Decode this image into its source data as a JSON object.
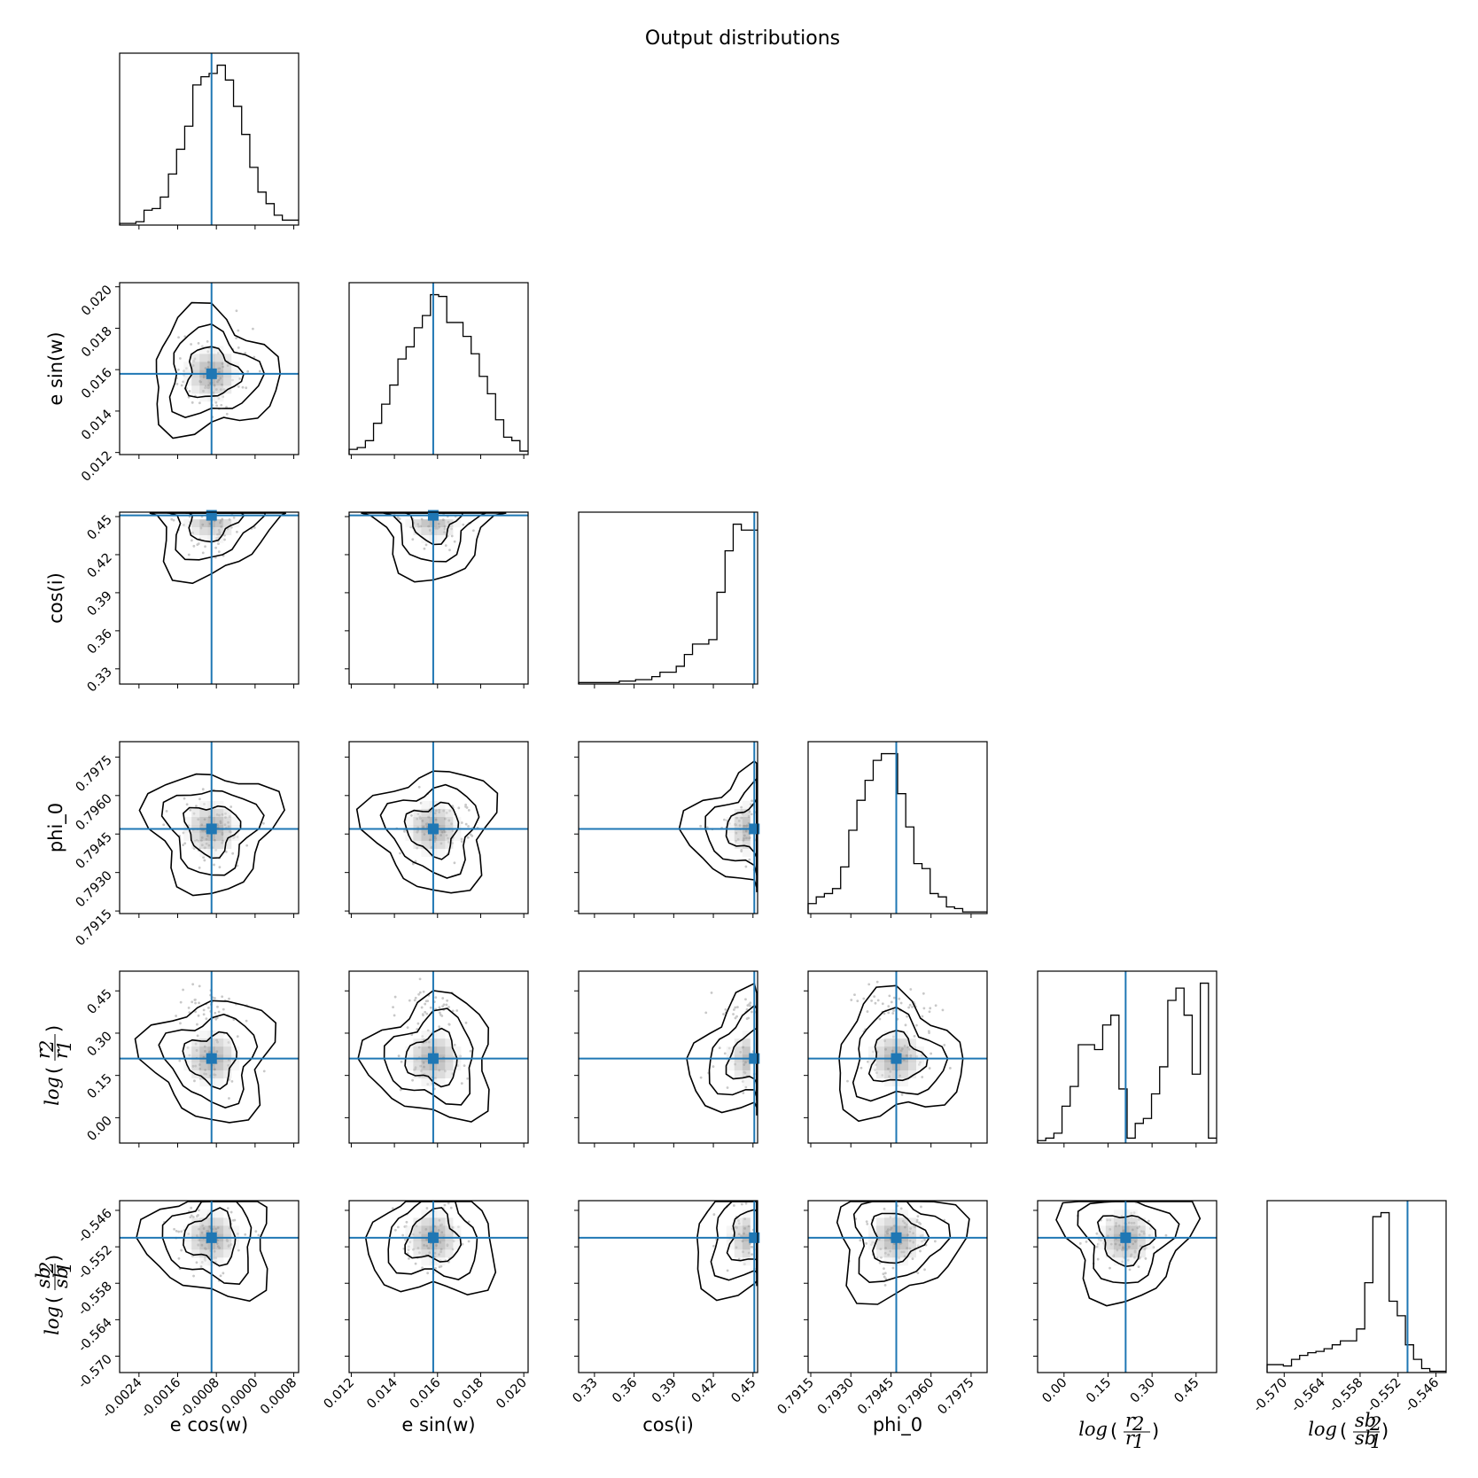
{
  "chart_data": {
    "type": "corner",
    "title": "Output distributions",
    "truth_color": "#1f77b4",
    "parameters": [
      {
        "label": "e cos(w)",
        "range": [
          -0.0028,
          0.0009
        ],
        "truth": -0.0009,
        "ticks": [
          "-0.0024",
          "-0.0016",
          "-0.0008",
          "0.0000",
          "0.0008"
        ],
        "tick_values": [
          -0.0024,
          -0.0016,
          -0.0008,
          0.0,
          0.0008
        ]
      },
      {
        "label": "e sin(w)",
        "range": [
          0.0119,
          0.0202
        ],
        "truth": 0.0158,
        "ticks": [
          "0.012",
          "0.014",
          "0.016",
          "0.018",
          "0.020"
        ],
        "tick_values": [
          0.012,
          0.014,
          0.016,
          0.018,
          0.02
        ]
      },
      {
        "label": "cos(i)",
        "range": [
          0.318,
          0.4535
        ],
        "truth": 0.451,
        "ticks": [
          "0.33",
          "0.36",
          "0.39",
          "0.42",
          "0.45"
        ],
        "tick_values": [
          0.33,
          0.36,
          0.39,
          0.42,
          0.45
        ]
      },
      {
        "label": "phi_0",
        "range": [
          0.7914,
          0.7981
        ],
        "truth": 0.7947,
        "ticks": [
          "0.7915",
          "0.7930",
          "0.7945",
          "0.7960",
          "0.7975"
        ],
        "tick_values": [
          0.7915,
          0.793,
          0.7945,
          0.796,
          0.7975
        ]
      },
      {
        "label": "log(r2/r1)",
        "range": [
          -0.09,
          0.52
        ],
        "truth": 0.21,
        "ticks": [
          "0.00",
          "0.15",
          "0.30",
          "0.45"
        ],
        "tick_values": [
          0.0,
          0.15,
          0.3,
          0.45
        ]
      },
      {
        "label": "log(sb2/sb1)",
        "range": [
          -0.5727,
          -0.5444
        ],
        "truth": -0.5505,
        "ticks": [
          "-0.570",
          "-0.564",
          "-0.558",
          "-0.552",
          "-0.546"
        ],
        "tick_values": [
          -0.57,
          -0.564,
          -0.558,
          -0.552,
          -0.546
        ]
      }
    ],
    "histograms": [
      [
        1,
        1,
        2,
        9,
        10,
        17,
        31,
        46,
        60,
        85,
        90,
        92,
        97,
        88,
        72,
        55,
        35,
        20,
        13,
        6,
        3,
        3
      ],
      [
        3,
        4,
        8,
        18,
        29,
        40,
        55,
        62,
        73,
        80,
        92,
        91,
        76,
        76,
        68,
        58,
        45,
        35,
        20,
        10,
        8,
        2
      ],
      [
        1,
        1,
        1,
        1,
        1,
        2,
        2,
        3,
        3,
        5,
        8,
        8,
        12,
        20,
        27,
        27,
        30,
        62,
        90,
        108,
        104,
        104
      ],
      [
        6,
        10,
        12,
        15,
        28,
        50,
        68,
        80,
        92,
        96,
        96,
        72,
        52,
        30,
        27,
        12,
        10,
        4,
        3,
        1,
        1,
        1
      ],
      [
        1,
        2,
        4,
        15,
        23,
        40,
        40,
        38,
        48,
        52,
        22,
        2,
        8,
        10,
        20,
        31,
        58,
        63,
        52,
        28,
        65,
        2
      ],
      [
        6,
        6,
        5,
        10,
        13,
        15,
        16,
        18,
        21,
        24,
        24,
        33,
        68,
        118,
        121,
        54,
        43,
        21,
        10,
        3,
        1,
        1
      ]
    ],
    "axis_labels": {
      "e_cos_w": "e cos(w)",
      "e_sin_w": "e sin(w)",
      "cos_i": "cos(i)",
      "phi_0": "phi_0",
      "log_r_num": "r",
      "log_r_num_sub": "2",
      "log_r_den": "r",
      "log_r_den_sub": "1",
      "log_sb_num": "sb",
      "log_sb_num_sub": "2",
      "log_sb_den": "sb",
      "log_sb_den_sub": "1",
      "log_word": "log"
    }
  }
}
